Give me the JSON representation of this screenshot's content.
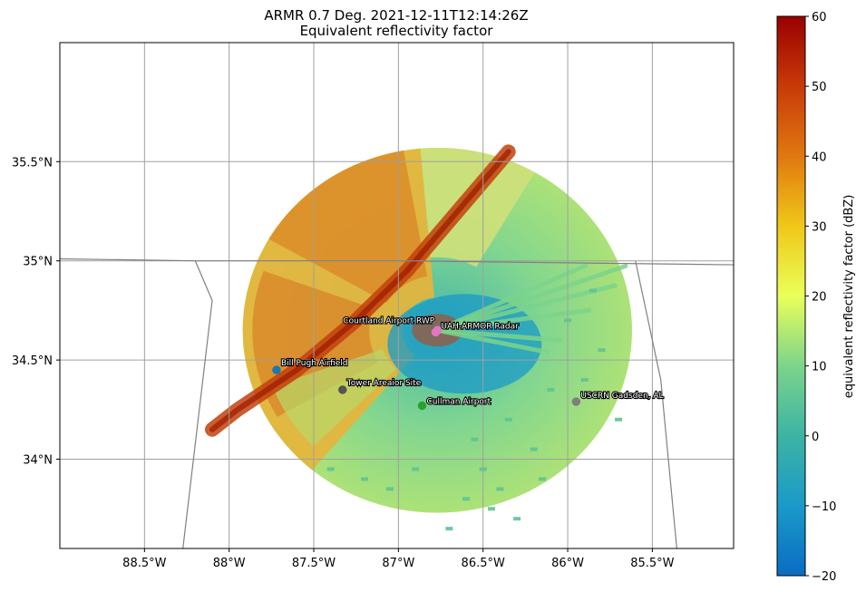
{
  "chart_data": {
    "type": "heatmap",
    "title_line1": "ARMR 0.7 Deg. 2021-12-11T12:14:26Z",
    "title_line2": "Equivalent reflectivity factor",
    "x_ticks": [
      {
        "value": -88.5,
        "label": "88.5°W"
      },
      {
        "value": -88.0,
        "label": "88°W"
      },
      {
        "value": -87.5,
        "label": "87.5°W"
      },
      {
        "value": -87.0,
        "label": "87°W"
      },
      {
        "value": -86.5,
        "label": "86.5°W"
      },
      {
        "value": -86.0,
        "label": "86°W"
      },
      {
        "value": -85.5,
        "label": "85.5°W"
      }
    ],
    "y_ticks": [
      {
        "value": 34.0,
        "label": "34°N"
      },
      {
        "value": 34.5,
        "label": "34.5°N"
      },
      {
        "value": 35.0,
        "label": "35°N"
      },
      {
        "value": 35.5,
        "label": "35.5°N"
      }
    ],
    "xlim": [
      -89.0,
      -85.02
    ],
    "ylim": [
      33.55,
      36.1
    ],
    "grid": true,
    "colorbar": {
      "label": "equivalent reflectivity factor (dBZ)",
      "min": -20,
      "max": 60,
      "ticks": [
        -20,
        -10,
        0,
        10,
        20,
        30,
        40,
        50,
        60
      ],
      "tick_labels": [
        "−20",
        "−10",
        "0",
        "10",
        "20",
        "30",
        "40",
        "50",
        "60"
      ],
      "colors": [
        "#0a6cc4",
        "#1a9ac8",
        "#3cb4a4",
        "#7cd48a",
        "#eaff5a",
        "#f0c818",
        "#e07810",
        "#c83a08",
        "#9a0000"
      ]
    },
    "radar": {
      "lon": -86.77,
      "lat": 34.65,
      "range_deg": 1.15
    },
    "sites": [
      {
        "name": "Courtland Airport RWP",
        "lon": -86.77,
        "lat": 34.65,
        "color": "#e377c2"
      },
      {
        "name": "UAH-ARMOR Radar",
        "lon": -86.78,
        "lat": 34.64,
        "color": "#e377c2"
      },
      {
        "name": "Bill Pugh Airfield",
        "lon": -87.72,
        "lat": 34.45,
        "color": "#1f77b4"
      },
      {
        "name": "Tower Areaior Site",
        "lon": -87.33,
        "lat": 34.35,
        "color": "#555555"
      },
      {
        "name": "Cullman Airport",
        "lon": -86.86,
        "lat": 34.27,
        "color": "#2ca02c"
      },
      {
        "name": "USCRN Gadsden, AL",
        "lon": -85.95,
        "lat": 34.29,
        "color": "#7f7f7f"
      }
    ]
  }
}
